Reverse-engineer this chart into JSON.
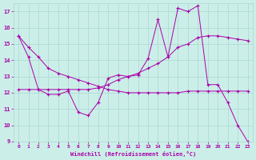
{
  "xlabel": "Windchill (Refroidissement éolien,°C)",
  "background_color": "#cceee8",
  "grid_color": "#aad8d2",
  "line_color": "#aa00aa",
  "xlim": [
    -0.5,
    23.5
  ],
  "ylim": [
    9,
    17.5
  ],
  "yticks": [
    9,
    10,
    11,
    12,
    13,
    14,
    15,
    16,
    17
  ],
  "xticks": [
    0,
    1,
    2,
    3,
    4,
    5,
    6,
    7,
    8,
    9,
    10,
    11,
    12,
    13,
    14,
    15,
    16,
    17,
    18,
    19,
    20,
    21,
    22,
    23
  ],
  "series": [
    {
      "x": [
        0,
        1,
        2,
        3,
        4,
        5,
        6,
        7,
        8,
        9,
        10,
        11,
        12,
        13,
        14,
        15,
        16,
        17,
        18,
        19,
        20,
        21,
        22,
        23
      ],
      "y": [
        15.5,
        14.2,
        12.2,
        11.9,
        11.9,
        12.1,
        10.8,
        10.6,
        11.4,
        12.9,
        13.1,
        13.0,
        13.1,
        14.1,
        16.5,
        14.2,
        17.2,
        17.0,
        17.35,
        12.5,
        12.5,
        11.4,
        10.0,
        9.0
      ]
    },
    {
      "x": [
        0,
        1,
        2,
        3,
        4,
        5,
        6,
        7,
        8,
        9,
        10,
        11,
        12,
        13,
        14,
        15,
        16,
        17,
        18,
        19,
        20,
        21,
        22,
        23
      ],
      "y": [
        15.5,
        14.8,
        14.2,
        13.5,
        13.2,
        13.0,
        12.8,
        12.6,
        12.4,
        12.2,
        12.1,
        12.0,
        12.0,
        12.0,
        12.0,
        12.0,
        12.0,
        12.1,
        12.1,
        12.1,
        12.1,
        12.1,
        12.1,
        12.1
      ]
    },
    {
      "x": [
        0,
        1,
        2,
        3,
        4,
        5,
        6,
        7,
        8,
        9,
        10,
        11,
        12,
        13,
        14,
        15,
        16,
        17,
        18,
        19,
        20,
        21,
        22,
        23
      ],
      "y": [
        12.2,
        12.2,
        12.2,
        12.2,
        12.2,
        12.2,
        12.2,
        12.2,
        12.3,
        12.5,
        12.8,
        13.0,
        13.2,
        13.5,
        13.8,
        14.2,
        14.8,
        15.0,
        15.4,
        15.5,
        15.5,
        15.4,
        15.3,
        15.2
      ]
    }
  ]
}
